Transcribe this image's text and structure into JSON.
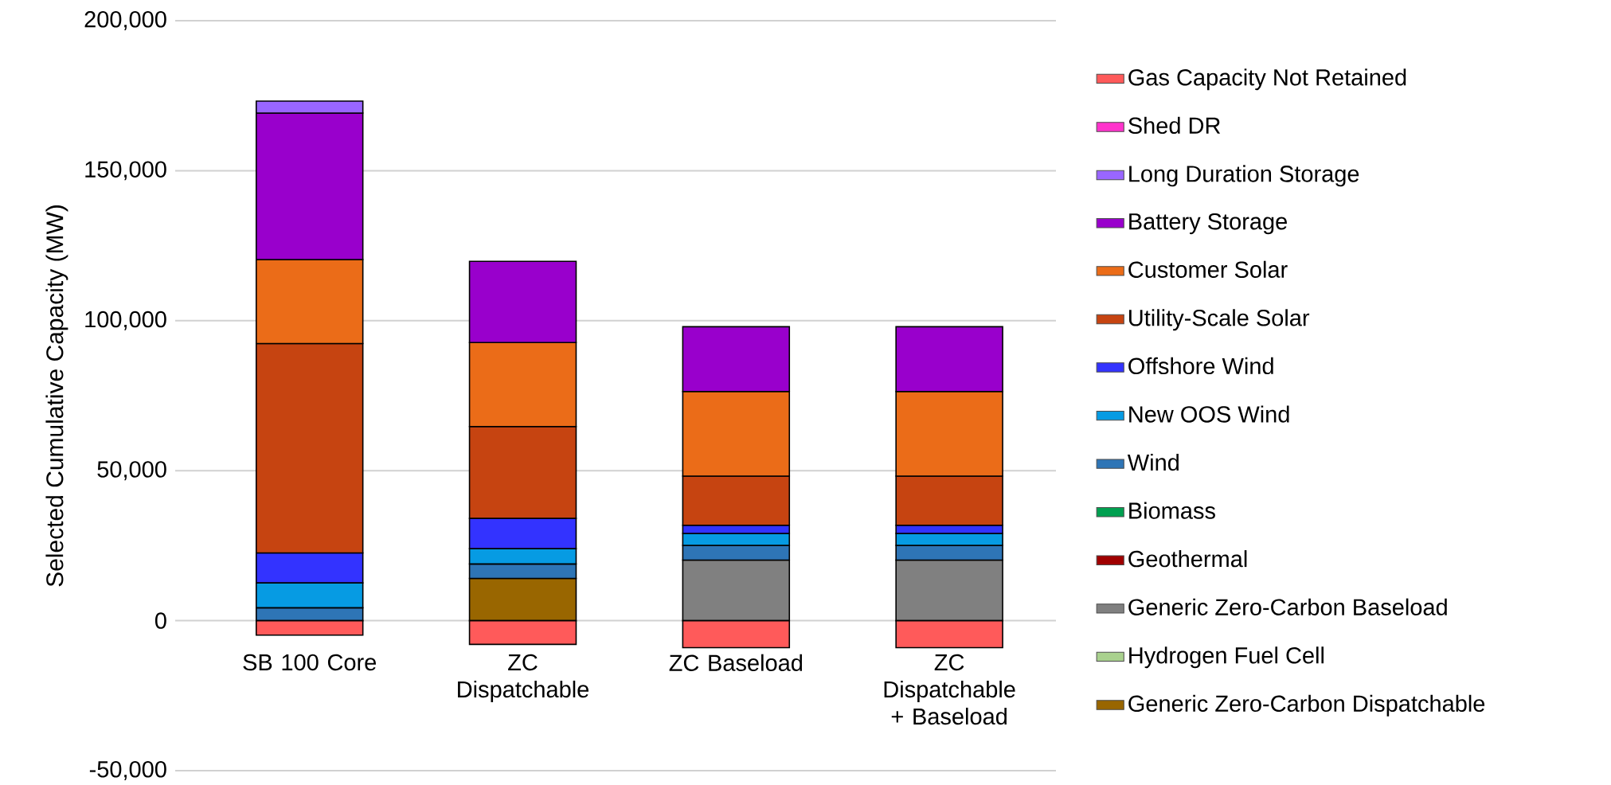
{
  "chart_data": {
    "type": "bar",
    "stacked": true,
    "ylabel": "Selected Cumulative Capacity (MW)",
    "categories": [
      "SB 100 Core",
      "ZC Dispatchable",
      "ZC Baseload",
      "ZC Dispatchable + Baseload"
    ],
    "ylim": [
      -50000,
      200000
    ],
    "yticks": [
      {
        "value": -50000,
        "label": "-50,000"
      },
      0,
      {
        "value": 50000,
        "label": "50,000"
      },
      {
        "value": 100000,
        "label": "100,000"
      },
      {
        "value": 150000,
        "label": "150,000"
      },
      {
        "value": 200000,
        "label": "200,000"
      }
    ],
    "grid": "y",
    "legend": "right",
    "series": [
      {
        "name": "Generic Zero-Carbon Dispatchable",
        "color": "#996600",
        "values": [
          0,
          14100,
          0,
          0
        ]
      },
      {
        "name": "Hydrogen Fuel Cell",
        "color": "#a9d18e",
        "values": [
          0,
          0,
          0,
          0
        ]
      },
      {
        "name": "Generic Zero-Carbon Baseload",
        "color": "#808080",
        "values": [
          0,
          0,
          20200,
          20200
        ]
      },
      {
        "name": "Geothermal",
        "color": "#a00000",
        "values": [
          0,
          0,
          0,
          0
        ]
      },
      {
        "name": "Biomass",
        "color": "#00a050",
        "values": [
          0,
          0,
          0,
          0
        ]
      },
      {
        "name": "Wind",
        "color": "#2e75b6",
        "values": [
          4300,
          4800,
          4900,
          4900
        ]
      },
      {
        "name": "New OOS Wind",
        "color": "#069be3",
        "values": [
          8300,
          5100,
          4000,
          4000
        ]
      },
      {
        "name": "Offshore Wind",
        "color": "#3333ff",
        "values": [
          10000,
          10100,
          2700,
          2700
        ]
      },
      {
        "name": "Utility-Scale Solar",
        "color": "#c64411",
        "values": [
          69800,
          30600,
          16400,
          16400
        ]
      },
      {
        "name": "Customer Solar",
        "color": "#eb6c18",
        "values": [
          28000,
          28000,
          28200,
          28200
        ]
      },
      {
        "name": "Battery Storage",
        "color": "#9900cc",
        "values": [
          48800,
          27100,
          21600,
          21600
        ]
      },
      {
        "name": "Long Duration Storage",
        "color": "#9966ff",
        "values": [
          4000,
          0,
          0,
          0
        ]
      },
      {
        "name": "Shed DR",
        "color": "#ff33cc",
        "values": [
          0,
          0,
          0,
          0
        ]
      },
      {
        "name": "Gas Capacity Not Retained",
        "color": "#ff5a5a",
        "values": [
          -4800,
          -7900,
          -9000,
          -9000
        ]
      }
    ]
  }
}
